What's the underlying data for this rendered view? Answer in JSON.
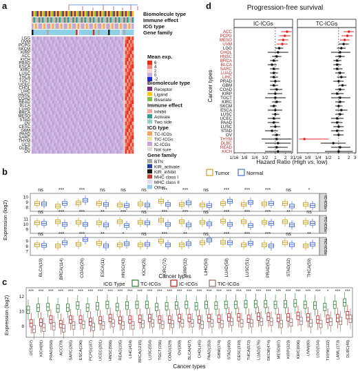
{
  "panels": {
    "a": "a",
    "b": "b",
    "c": "c",
    "d": "d"
  },
  "chart_data": [
    {
      "type": "heatmap",
      "panel": "a",
      "row_labels": [
        "LGG",
        "UVM",
        "PCPG",
        "SKCM",
        "KIRP",
        "ACC",
        "KICH",
        "PRAD",
        "ESCA",
        "KIRC",
        "LUSC",
        "THCA",
        "TGCT",
        "UCEC",
        "CHOL",
        "LIHC",
        "HNSC",
        "COAD",
        "READ",
        "BLCA",
        "LUAD",
        "BRCA",
        "MESO",
        "STAD",
        "OV",
        "CESC",
        "GBM",
        "PAAD",
        "SARC",
        "THYM",
        "UCS",
        "DLBC",
        "OV"
      ],
      "annotation_tracks": [
        "Biomolecule type",
        "Immune effect",
        "ICG type",
        "Gene family"
      ],
      "legend": {
        "mean_expr": {
          "title": "Mean exp.",
          "ticks": [
            "6",
            "4",
            "2",
            "0",
            "-2"
          ]
        },
        "biomolecule_type": {
          "title": "Biomolecule type",
          "items": [
            {
              "label": "Receptor",
              "color": "#7b2b86"
            },
            {
              "label": "Ligand",
              "color": "#f2c811"
            },
            {
              "label": "Bivariate",
              "color": "#7fbf4a"
            }
          ]
        },
        "immune_effect": {
          "title": "Immune effect",
          "items": [
            {
              "label": "Inhibit",
              "color": "#f3a7a2"
            },
            {
              "label": "Activate",
              "color": "#2f9e8f"
            },
            {
              "label": "Two side",
              "color": "#8fd0c5"
            }
          ]
        },
        "icg_type": {
          "title": "ICG type",
          "items": [
            {
              "label": "TC-ICGs",
              "color": "#f4a460"
            },
            {
              "label": "TIC-ICGs",
              "color": "#f0e0a0"
            },
            {
              "label": "IC-ICGs",
              "color": "#c7a3d6"
            },
            {
              "label": "Not sure",
              "color": "#d9d9d9"
            }
          ]
        },
        "gene_family": {
          "title": "Gene family",
          "items": [
            {
              "label": "BTN",
              "color": "#a9a9a9"
            },
            {
              "label": "KIR_activate",
              "color": "#1f3a93"
            },
            {
              "label": "KIR_inhibit",
              "color": "#1a1a1a"
            },
            {
              "label": "MHC class I",
              "color": "#c0392b"
            },
            {
              "label": "MHC class II",
              "color": "#e8d9f0"
            },
            {
              "label": "Other",
              "color": "#8fd0e6"
            }
          ]
        }
      }
    },
    {
      "type": "box",
      "panel": "b",
      "ylabel": "Expression (log2)",
      "xlabel": "Cancer types",
      "legend": [
        "Tumor",
        "Normal"
      ],
      "colors": {
        "tumor": "#c9a227",
        "normal": "#4a6fd1"
      },
      "categories": [
        "BLCA(19)",
        "BRCA(114)",
        "COAD(26)",
        "ESCA(11)",
        "HNSC(43)",
        "KICH(25)",
        "KIRC(72)",
        "KIRP(32)",
        "LIHC(50)",
        "LUAD(58)",
        "LUSC(51)",
        "PRAD(52)",
        "STAD(32)",
        "THCA(59)"
      ],
      "rows": [
        {
          "label": "IC-ICGs",
          "significance": [
            "ns",
            "***",
            "***",
            "ns",
            "ns",
            "ns",
            "***",
            "***",
            "ns",
            "***",
            "***",
            "***",
            "ns",
            "*"
          ],
          "ticks": [
            "8",
            "9",
            "10"
          ],
          "tumor": [
            8.8,
            8.3,
            8.9,
            8.8,
            8.5,
            8.7,
            9.2,
            8.6,
            8.5,
            8.8,
            8.6,
            8.7,
            8.8,
            8.6
          ],
          "normal": [
            8.7,
            8.8,
            9.4,
            8.6,
            8.4,
            8.5,
            8.6,
            8.9,
            8.4,
            9.2,
            9.0,
            8.8,
            8.3,
            8.4
          ]
        },
        {
          "label": "TC-ICGs",
          "significance": [
            "ns",
            "***",
            "***",
            "**",
            "***",
            "ns",
            "***",
            "***",
            "ns",
            "***",
            "***",
            "***",
            "**",
            "ns"
          ],
          "ticks": [
            "9",
            "10",
            "11"
          ],
          "tumor": [
            10.3,
            10.5,
            10.4,
            10.3,
            10.5,
            10.4,
            10.8,
            10.5,
            10.4,
            10.6,
            10.5,
            10.4,
            10.5,
            10.4
          ],
          "normal": [
            10.2,
            10.0,
            10.0,
            9.9,
            9.8,
            10.3,
            10.0,
            9.9,
            10.1,
            10.0,
            9.8,
            10.2,
            9.9,
            10.2
          ]
        },
        {
          "label": "TIC-ICGs",
          "significance": [
            "ns",
            "***",
            "***",
            "**",
            "*",
            "ns",
            "***",
            "**",
            "ns",
            "***",
            "***",
            "***",
            "ns",
            "**"
          ],
          "ticks": [
            "7",
            "8",
            "9"
          ],
          "tumor": [
            8.3,
            8.1,
            8.4,
            8.6,
            8.3,
            8.3,
            9.0,
            8.3,
            8.7,
            8.8,
            8.3,
            8.3,
            8.7,
            8.1
          ],
          "normal": [
            8.2,
            8.7,
            9.3,
            8.1,
            8.5,
            8.4,
            8.3,
            8.5,
            9.2,
            8.7,
            8.6,
            8.1,
            8.3,
            8.4
          ]
        }
      ]
    },
    {
      "type": "box",
      "panel": "c",
      "ylabel": "Expression (log2)",
      "xlabel": "Cancer types",
      "legend_title": "ICG Type",
      "legend": [
        "TC-ICGs",
        "IC-ICGs",
        "TIC-ICGs"
      ],
      "colors": {
        "tc": "#2e7d32",
        "ic": "#b71c1c",
        "tic": "#8d6e63"
      },
      "yticks": [
        "8",
        "10",
        "12"
      ],
      "categories": [
        "UCS(57)",
        "KICH(91)",
        "PRAD(550)",
        "ACC(79)",
        "SARC(265)",
        "ESCA(196)",
        "PCPG(187)",
        "UCEC(201)",
        "HNSC(566)",
        "READ(105)",
        "LIHC(424)",
        "BRCA(1215)",
        "LUSC(554)",
        "TGCT(156)",
        "COAD(329)",
        "OV(309)",
        "BLCA(427)",
        "CHOL(45)",
        "PAAD(183)",
        "GBM(174)",
        "STAD(450)",
        "CESC(310)",
        "THCA(572)",
        "LUAD(576)",
        "SKCM(474)",
        "MESO(87)",
        "KIRP(323)",
        "KIRC(606)",
        "UVM(80)",
        "LGG(534)",
        "THYM(122)",
        "LAML(173)",
        "DLBC(48)"
      ],
      "significance": [
        "***",
        "***",
        "***",
        "***",
        "***",
        "***",
        "***",
        "***",
        "***",
        "***",
        "***",
        "***",
        "***",
        "***",
        "***",
        "***",
        "***",
        "***",
        "***",
        "***",
        "***",
        "***",
        "***",
        "***",
        "***",
        "***",
        "***",
        "***",
        "***",
        "***",
        "*",
        "***",
        "***"
      ],
      "tc": [
        10.2,
        10.5,
        10.6,
        10.4,
        10.5,
        10.8,
        10.5,
        10.7,
        10.9,
        10.6,
        10.8,
        10.9,
        10.9,
        10.6,
        10.7,
        10.8,
        10.9,
        10.7,
        10.9,
        10.8,
        10.9,
        10.9,
        11.0,
        11.0,
        11.0,
        10.9,
        11.0,
        11.1,
        10.9,
        10.8,
        10.6,
        10.9,
        11.2
      ],
      "ic": [
        8.4,
        8.5,
        8.9,
        8.3,
        8.9,
        8.9,
        8.6,
        8.8,
        9.1,
        8.8,
        8.9,
        9.0,
        9.1,
        8.9,
        8.9,
        9.1,
        9.1,
        8.9,
        9.1,
        9.0,
        9.2,
        9.2,
        9.0,
        9.3,
        9.3,
        9.1,
        9.2,
        9.4,
        9.2,
        8.9,
        9.0,
        9.1,
        9.5
      ],
      "tic": [
        7.6,
        7.8,
        8.0,
        7.7,
        8.1,
        8.2,
        7.9,
        8.1,
        8.4,
        8.1,
        8.1,
        8.3,
        8.4,
        8.2,
        8.3,
        8.4,
        8.4,
        8.2,
        8.4,
        8.3,
        8.6,
        8.4,
        8.4,
        8.6,
        8.6,
        8.3,
        8.5,
        8.7,
        8.4,
        8.3,
        8.6,
        8.7,
        9.0
      ]
    },
    {
      "type": "forest",
      "panel": "d",
      "title": "Progression-free survival",
      "ylabel": "Cancer types",
      "xlabel_main": "Hazard Ratio (High",
      "xlabel_vs": "vs.",
      "xlabel_end": "low)",
      "xticks": [
        "1/16",
        "1/8",
        "1/4",
        "1/2",
        "1",
        "2",
        "3"
      ],
      "facets": [
        "IC-ICGs",
        "TC-ICGs"
      ],
      "cancers": [
        "ACC",
        "PCPG",
        "MESO",
        "UVM",
        "LGG",
        "CHOL",
        "HNSC",
        "BRCA",
        "BLCA",
        "SARC",
        "LUAD",
        "LIHC",
        "PRAD",
        "GBM",
        "COAD",
        "KIRP",
        "TGCT",
        "KIRC",
        "SKCM",
        "ESCA",
        "LUSC",
        "UCEC",
        "PAAD",
        "LUSC",
        "STAD",
        "OV",
        "THYM",
        "DLBC",
        "READ",
        "KICH"
      ],
      "highlight": [
        "ACC",
        "PCPG",
        "MESO",
        "UVM",
        "CHOL",
        "HNSC",
        "BRCA",
        "BLCA",
        "SARC",
        "LUAD",
        "LIHC",
        "THYM",
        "DLBC",
        "READ",
        "KICH"
      ],
      "ic_hr": [
        2.2,
        1.9,
        1.7,
        1.6,
        1.3,
        1.2,
        1.1,
        0.9,
        0.8,
        0.9,
        0.9,
        0.9,
        1.0,
        0.9,
        1.1,
        1.0,
        1.0,
        1.1,
        0.9,
        1.0,
        1.0,
        0.9,
        0.9,
        1.0,
        0.8,
        1.1,
        1.1,
        1.2,
        1.1,
        1.2
      ],
      "ic_lo": [
        1.5,
        1.3,
        1.2,
        1.1,
        1.0,
        0.6,
        0.8,
        0.7,
        0.6,
        0.7,
        0.7,
        0.7,
        0.7,
        0.7,
        0.7,
        0.6,
        0.5,
        0.8,
        0.7,
        0.6,
        0.8,
        0.6,
        0.6,
        0.7,
        0.5,
        0.8,
        0.4,
        0.5,
        0.6,
        0.5
      ],
      "ic_hi": [
        3.0,
        2.8,
        2.4,
        2.3,
        1.7,
        2.4,
        1.5,
        1.2,
        1.1,
        1.3,
        1.2,
        1.2,
        1.4,
        1.2,
        1.6,
        1.6,
        2.0,
        1.5,
        1.1,
        1.6,
        1.3,
        1.4,
        1.3,
        1.4,
        1.2,
        1.4,
        3.0,
        2.8,
        2.3,
        3.0
      ],
      "tc_hr": [
        2.0,
        1.8,
        1.5,
        1.4,
        1.2,
        1.1,
        1.1,
        0.9,
        0.9,
        0.9,
        1.1,
        1.2,
        1.0,
        1.3,
        1.1,
        0.9,
        1.1,
        1.1,
        1.0,
        1.2,
        1.1,
        0.9,
        0.9,
        1.0,
        0.9,
        1.0,
        0.1,
        0.7,
        1.1,
        1.0
      ],
      "tc_lo": [
        1.4,
        1.2,
        1.1,
        1.0,
        0.9,
        0.6,
        0.8,
        0.7,
        0.7,
        0.7,
        0.8,
        0.9,
        0.7,
        1.0,
        0.8,
        0.6,
        0.6,
        0.8,
        0.8,
        0.8,
        0.8,
        0.6,
        0.6,
        0.7,
        0.6,
        0.7,
        0.07,
        0.3,
        0.6,
        0.4
      ],
      "tc_hi": [
        2.8,
        2.6,
        2.1,
        2.0,
        1.6,
        2.2,
        1.5,
        1.2,
        1.2,
        1.3,
        1.5,
        1.7,
        1.4,
        1.7,
        1.5,
        1.4,
        2.2,
        1.5,
        1.3,
        1.8,
        1.4,
        1.4,
        1.3,
        1.4,
        1.4,
        1.4,
        0.5,
        1.6,
        2.2,
        2.6
      ]
    }
  ]
}
